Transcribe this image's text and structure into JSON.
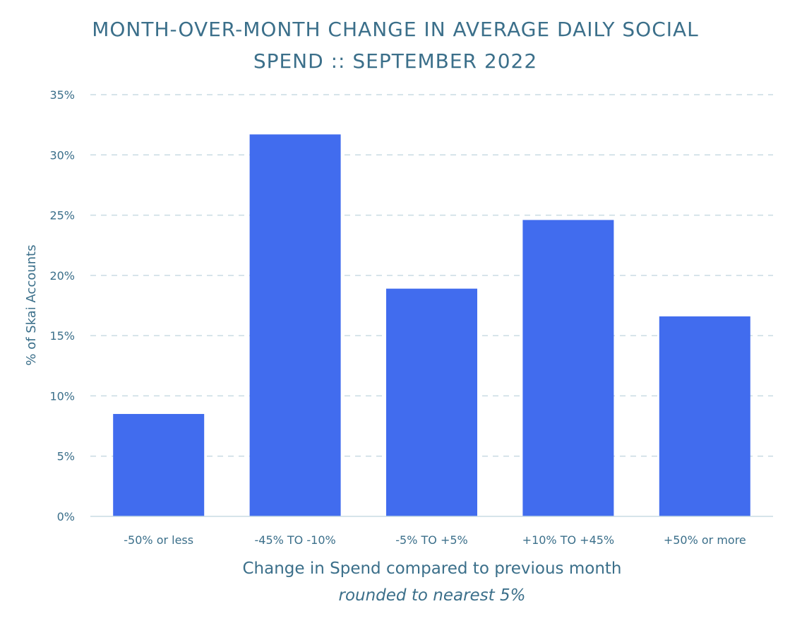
{
  "chart_data": {
    "type": "bar",
    "title_line1": "MONTH-OVER-MONTH CHANGE IN AVERAGE DAILY SOCIAL",
    "title_line2": "SPEND :: SEPTEMBER 2022",
    "categories": [
      "-50% or less",
      "-45% TO -10%",
      "-5% TO +5%",
      "+10% TO +45%",
      "+50% or more"
    ],
    "values": [
      8.5,
      31.7,
      18.9,
      24.6,
      16.6
    ],
    "ylabel": "% of Skai Accounts",
    "xlabel": "Change in Spend compared to previous month",
    "xlabel_note": "rounded to nearest 5%",
    "ylim": [
      0,
      35
    ],
    "yticks": [
      "0%",
      "5%",
      "10%",
      "15%",
      "20%",
      "25%",
      "30%",
      "35%"
    ],
    "grid": true,
    "bar_color": "#416cee",
    "text_color": "#3b6f8a",
    "grid_color": "#c9dbe3"
  }
}
